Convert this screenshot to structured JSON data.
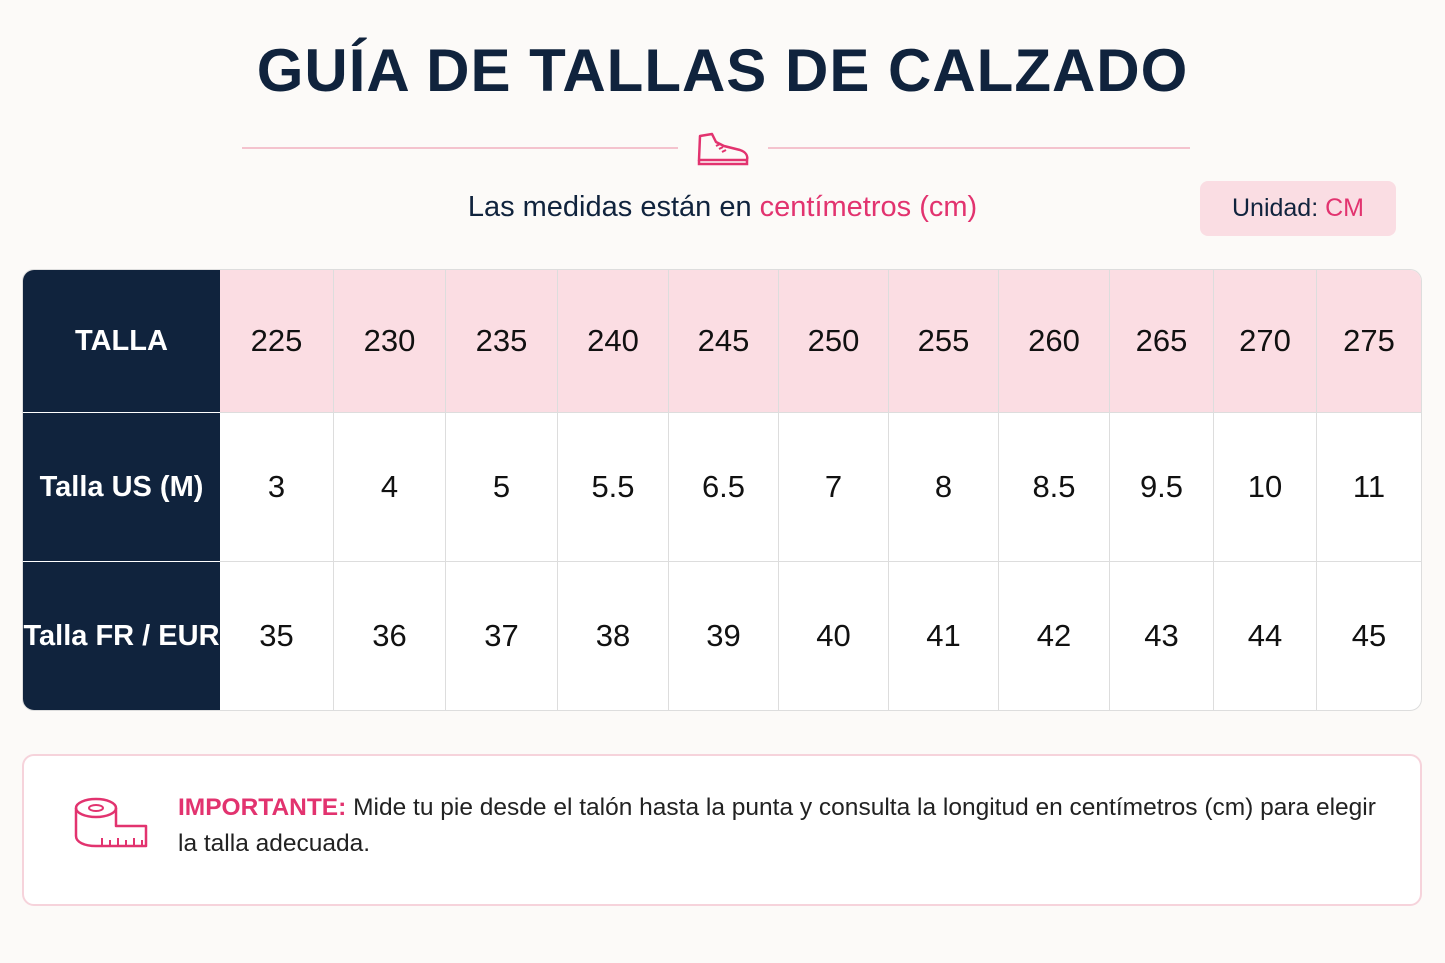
{
  "header": {
    "title": "GUÍA DE TALLAS DE CALZADO",
    "subtitle": {
      "text": "Las medidas están en",
      "highlight": "centímetros (cm)"
    },
    "unit_badge": {
      "label": "Unidad:",
      "value": "CM"
    }
  },
  "table": {
    "rows": [
      [
        "TALLA",
        225,
        230,
        235,
        240,
        245,
        250,
        255,
        260,
        265,
        270,
        275
      ],
      [
        "Talla US (M)",
        3,
        4,
        5,
        5.5,
        6.5,
        7,
        8,
        8.5,
        9.5,
        10,
        11
      ],
      [
        "Talla FR / EUR",
        35,
        36,
        37,
        38,
        39,
        40,
        41,
        42,
        43,
        44,
        45
      ]
    ]
  },
  "note": {
    "label": "IMPORTANTE:",
    "text": "Mide tu pie desde el talón hasta la punta y consulta la longitud en centímetros (cm) para elegir la talla adecuada."
  }
}
